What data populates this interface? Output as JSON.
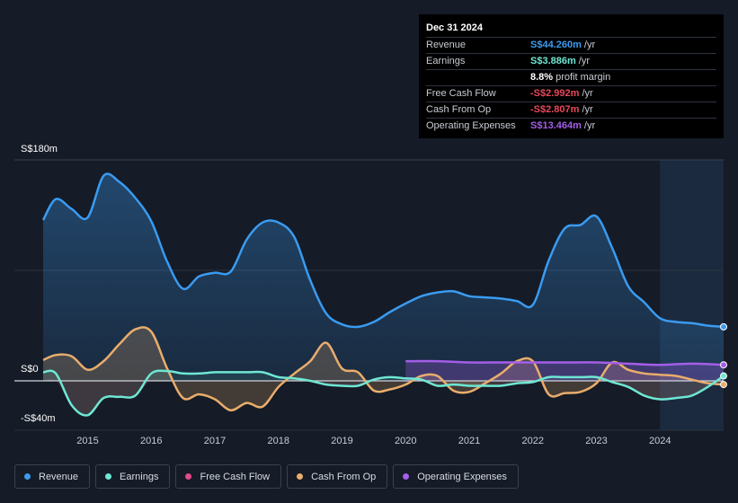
{
  "tooltip": {
    "date": "Dec 31 2024",
    "rows": [
      {
        "label": "Revenue",
        "value": "S$44.260m",
        "unit": "/yr",
        "color": "#3a9bf0"
      },
      {
        "label": "Earnings",
        "value": "S$3.886m",
        "unit": "/yr",
        "color": "#6ee7d3"
      },
      {
        "label": "",
        "value": "8.8%",
        "unit": "profit margin",
        "color": "#ffffff"
      },
      {
        "label": "Free Cash Flow",
        "value": "-S$2.992m",
        "unit": "/yr",
        "color": "#e8485a"
      },
      {
        "label": "Cash From Op",
        "value": "-S$2.807m",
        "unit": "/yr",
        "color": "#e8485a"
      },
      {
        "label": "Operating Expenses",
        "value": "S$13.464m",
        "unit": "/yr",
        "color": "#a45ee8"
      }
    ]
  },
  "chart_data": {
    "type": "area",
    "yaxis": {
      "top_label": "S$180m",
      "zero_label": "S$0",
      "bottom_label": "-S$40m",
      "ylim": [
        -40,
        180
      ]
    },
    "xaxis": {
      "ticks": [
        "2015",
        "2016",
        "2017",
        "2018",
        "2019",
        "2020",
        "2021",
        "2022",
        "2023",
        "2024"
      ],
      "xlim": [
        2014.3,
        2025.0
      ]
    },
    "highlight_from": 2024.0,
    "series": [
      {
        "name": "Revenue",
        "color": "#3a9bf0",
        "x": [
          2014.3,
          2014.5,
          2014.75,
          2015.0,
          2015.25,
          2015.5,
          2015.75,
          2016.0,
          2016.25,
          2016.5,
          2016.75,
          2017.0,
          2017.25,
          2017.5,
          2017.75,
          2018.0,
          2018.25,
          2018.5,
          2018.75,
          2019.0,
          2019.25,
          2019.5,
          2019.75,
          2020.0,
          2020.25,
          2020.5,
          2020.75,
          2021.0,
          2021.25,
          2021.5,
          2021.75,
          2022.0,
          2022.25,
          2022.5,
          2022.75,
          2023.0,
          2023.25,
          2023.5,
          2023.75,
          2024.0,
          2024.25,
          2024.5,
          2024.75,
          2025.0
        ],
        "values": [
          131,
          148,
          140,
          133,
          167,
          162,
          149,
          130,
          97,
          75,
          85,
          88,
          89,
          115,
          129,
          129,
          117,
          82,
          55,
          46,
          44,
          48,
          56,
          63,
          69,
          72,
          73,
          69,
          68,
          67,
          65,
          62,
          98,
          124,
          127,
          134,
          108,
          77,
          64,
          51,
          48,
          47,
          45,
          44
        ]
      },
      {
        "name": "Earnings",
        "color": "#6ee7d3",
        "x": [
          2014.3,
          2014.5,
          2014.75,
          2015.0,
          2015.25,
          2015.5,
          2015.75,
          2016.0,
          2016.25,
          2016.5,
          2016.75,
          2017.0,
          2017.25,
          2017.5,
          2017.75,
          2018.0,
          2018.25,
          2018.5,
          2018.75,
          2019.0,
          2019.25,
          2019.5,
          2019.75,
          2020.0,
          2020.25,
          2020.5,
          2020.75,
          2021.0,
          2021.25,
          2021.5,
          2021.75,
          2022.0,
          2022.25,
          2022.5,
          2022.75,
          2023.0,
          2023.25,
          2023.5,
          2023.75,
          2024.0,
          2024.25,
          2024.5,
          2024.75,
          2025.0
        ],
        "values": [
          7,
          6,
          -20,
          -28,
          -14,
          -13,
          -12,
          6,
          8,
          6,
          6,
          7,
          7,
          7,
          7,
          3,
          2,
          0,
          -3,
          -4,
          -4,
          1,
          3,
          2,
          1,
          -4,
          -3,
          -4,
          -4,
          -4,
          -2,
          -1,
          3,
          3,
          3,
          3,
          -1,
          -5,
          -12,
          -15,
          -14,
          -12,
          -5,
          4
        ]
      },
      {
        "name": "Cash From Op",
        "color": "#e9ad6c",
        "x": [
          2014.3,
          2014.5,
          2014.75,
          2015.0,
          2015.25,
          2015.5,
          2015.75,
          2016.0,
          2016.25,
          2016.5,
          2016.75,
          2017.0,
          2017.25,
          2017.5,
          2017.75,
          2018.0,
          2018.25,
          2018.5,
          2018.75,
          2019.0,
          2019.25,
          2019.5,
          2019.75,
          2020.0,
          2020.25,
          2020.5,
          2020.75,
          2021.0,
          2021.25,
          2021.5,
          2021.75,
          2022.0,
          2022.25,
          2022.5,
          2022.75,
          2023.0,
          2023.25,
          2023.5,
          2023.75,
          2024.0,
          2024.25,
          2024.5,
          2024.75,
          2025.0
        ],
        "values": [
          17,
          21,
          20,
          9,
          16,
          30,
          42,
          40,
          10,
          -14,
          -11,
          -15,
          -24,
          -18,
          -21,
          -5,
          6,
          16,
          31,
          10,
          7,
          -8,
          -7,
          -3,
          4,
          4,
          -8,
          -9,
          -2,
          6,
          16,
          16,
          -11,
          -10,
          -9,
          -2,
          15,
          9,
          6,
          5,
          4,
          1,
          -2,
          -3
        ]
      },
      {
        "name": "Operating Expenses",
        "color": "#a45ee8",
        "x": [
          2020.0,
          2020.5,
          2021.0,
          2021.5,
          2022.0,
          2022.5,
          2023.0,
          2023.5,
          2024.0,
          2024.5,
          2025.0
        ],
        "values": [
          16,
          16,
          15,
          15,
          15,
          15,
          15,
          14,
          13,
          14,
          13
        ]
      }
    ]
  },
  "legend": [
    {
      "label": "Revenue",
      "color": "#3a9bf0"
    },
    {
      "label": "Earnings",
      "color": "#6ee7d3"
    },
    {
      "label": "Free Cash Flow",
      "color": "#e04b8a"
    },
    {
      "label": "Cash From Op",
      "color": "#e9ad6c"
    },
    {
      "label": "Operating Expenses",
      "color": "#a45ee8"
    }
  ]
}
